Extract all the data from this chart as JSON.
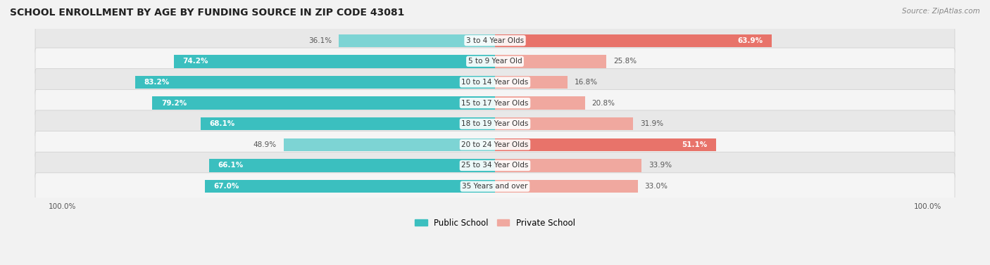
{
  "title": "SCHOOL ENROLLMENT BY AGE BY FUNDING SOURCE IN ZIP CODE 43081",
  "source": "Source: ZipAtlas.com",
  "categories": [
    "3 to 4 Year Olds",
    "5 to 9 Year Old",
    "10 to 14 Year Olds",
    "15 to 17 Year Olds",
    "18 to 19 Year Olds",
    "20 to 24 Year Olds",
    "25 to 34 Year Olds",
    "35 Years and over"
  ],
  "public_values": [
    36.1,
    74.2,
    83.2,
    79.2,
    68.1,
    48.9,
    66.1,
    67.0
  ],
  "private_values": [
    63.9,
    25.8,
    16.8,
    20.8,
    31.9,
    51.1,
    33.9,
    33.0
  ],
  "public_color_strong": "#3BBFBF",
  "public_color_light": "#7DD4D4",
  "private_color_strong": "#E8736A",
  "private_color_light": "#F0A89F",
  "bg_color": "#F2F2F2",
  "row_bg_even": "#E8E8E8",
  "row_bg_odd": "#F5F5F5",
  "title_fontsize": 10,
  "label_fontsize": 7.5,
  "value_fontsize": 7.5,
  "legend_fontsize": 8.5,
  "axis_label_fontsize": 7.5,
  "max_val": 100
}
